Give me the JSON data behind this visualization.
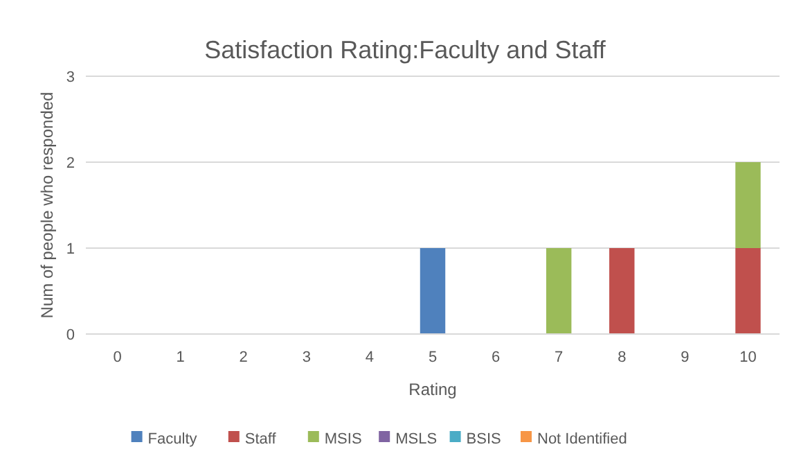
{
  "chart_data": {
    "type": "bar",
    "title": "Satisfaction Rating:Faculty and Staff",
    "xlabel": "Rating",
    "ylabel": "Num of people who responded",
    "categories": [
      "0",
      "1",
      "2",
      "3",
      "4",
      "5",
      "6",
      "7",
      "8",
      "9",
      "10"
    ],
    "series": [
      {
        "name": "Faculty",
        "color": "#4f81bd",
        "values": [
          0,
          0,
          0,
          0,
          0,
          1,
          0,
          0,
          0,
          0,
          0
        ]
      },
      {
        "name": "Staff",
        "color": "#c0504d",
        "values": [
          0,
          0,
          0,
          0,
          0,
          0,
          0,
          0,
          1,
          0,
          1
        ]
      },
      {
        "name": "MSIS",
        "color": "#9bbb59",
        "values": [
          0,
          0,
          0,
          0,
          0,
          0,
          0,
          1,
          0,
          0,
          1
        ]
      },
      {
        "name": "MSLS",
        "color": "#8064a2",
        "values": [
          0,
          0,
          0,
          0,
          0,
          0,
          0,
          0,
          0,
          0,
          0
        ]
      },
      {
        "name": "BSIS",
        "color": "#4bacc6",
        "values": [
          0,
          0,
          0,
          0,
          0,
          0,
          0,
          0,
          0,
          0,
          0
        ]
      },
      {
        "name": "Not Identified",
        "color": "#f79646",
        "values": [
          0,
          0,
          0,
          0,
          0,
          0,
          0,
          0,
          0,
          0,
          0
        ]
      }
    ],
    "stacked": true,
    "ylim": [
      0,
      3
    ],
    "yticks": [
      0,
      1,
      2,
      3
    ],
    "grid": "y",
    "legend": "bottom"
  }
}
